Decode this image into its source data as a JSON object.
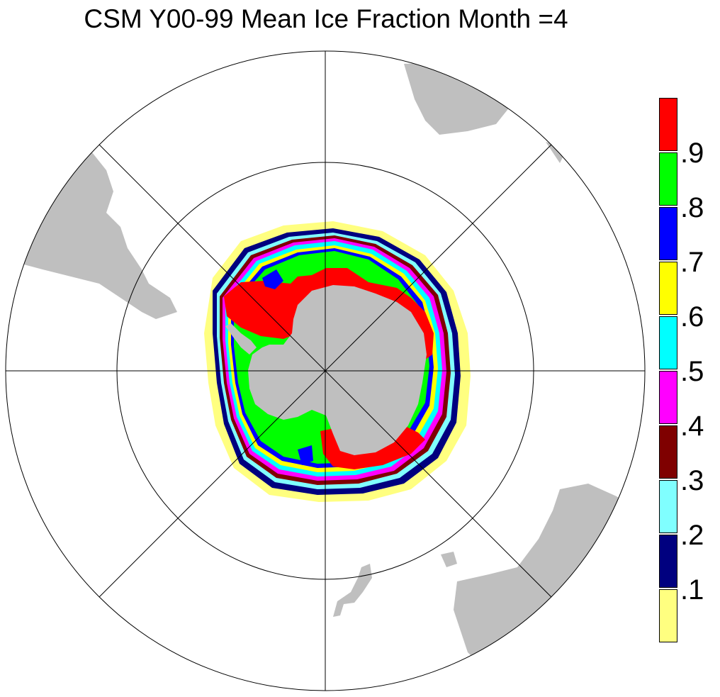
{
  "title": "CSM Y00-99 Mean Ice Fraction Month =4",
  "projection": "south-polar-stereographic",
  "grid": true,
  "land_color": "#bfbfbf",
  "colorbar": {
    "colors": [
      "#ffff80",
      "#00007f",
      "#80ffff",
      "#7f0000",
      "#ff00ff",
      "#00ffff",
      "#ffff00",
      "#0000ff",
      "#00ff00",
      "#ff0000"
    ],
    "labels": [
      ".1",
      ".2",
      ".3",
      ".4",
      ".5",
      ".6",
      ".7",
      ".8",
      ".9"
    ],
    "placement": "right"
  }
}
